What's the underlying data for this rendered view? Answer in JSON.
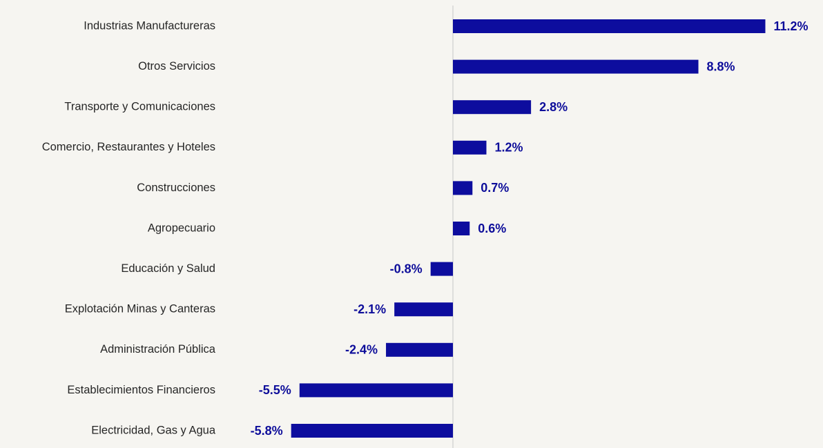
{
  "chart_data": {
    "type": "bar",
    "orientation": "horizontal",
    "categories": [
      "Industrias Manufactureras",
      "Otros Servicios",
      "Transporte y Comunicaciones",
      "Comercio, Restaurantes y Hoteles",
      "Construcciones",
      "Agropecuario",
      "Educación y Salud",
      "Explotación Minas y Canteras",
      "Administración Pública",
      "Establecimientos Financieros",
      "Electricidad, Gas y Agua"
    ],
    "values": [
      11.2,
      8.8,
      2.8,
      1.2,
      0.7,
      0.6,
      -0.8,
      -2.1,
      -2.4,
      -5.5,
      -5.8
    ],
    "value_labels": [
      "11.2%",
      "8.8%",
      "2.8%",
      "1.2%",
      "0.7%",
      "0.6%",
      "-0.8%",
      "-2.1%",
      "-2.4%",
      "-5.5%",
      "-5.8%"
    ],
    "color": "#0d0d9e",
    "xlim": [
      -6,
      12
    ]
  }
}
